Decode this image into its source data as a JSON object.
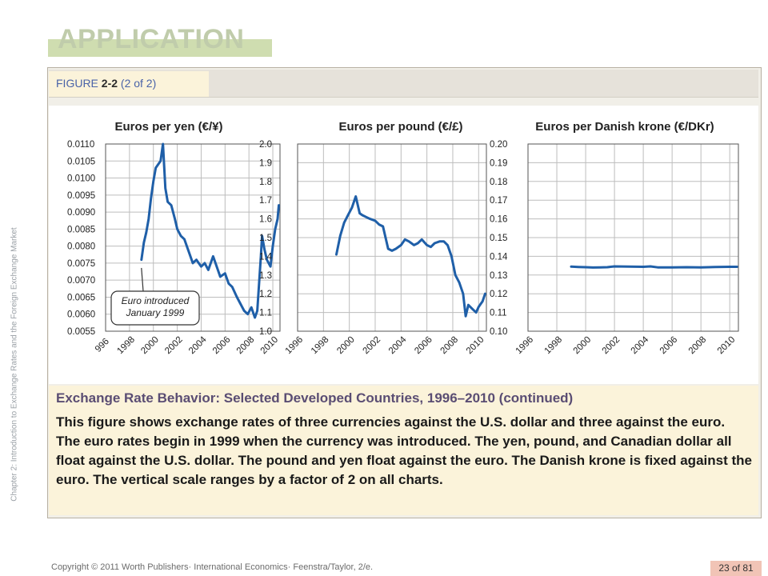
{
  "header": {
    "title": "APPLICATION",
    "figure_label_prefix": "FIGURE",
    "figure_label_number": "2-2",
    "figure_label_suffix": "(2 of 2)"
  },
  "side_text": "Chapter 2: Introduction to Exchange Rates and the Foreign Exchange Market",
  "caption": {
    "title": "Exchange Rate Behavior: Selected Developed Countries, 1996–2010 (continued)",
    "body": "This figure shows exchange rates of three currencies against the U.S. dollar and three against the euro. The euro rates begin in 1999 when the currency was introduced. The yen, pound, and Canadian dollar all float against the U.S. dollar. The pound and yen float against the euro. The Danish krone is fixed against the euro. The vertical scale ranges by a factor of 2 on all charts."
  },
  "footer": {
    "copyright": "Copyright © 2011 Worth Publishers· International Economics· Feenstra/Taylor, 2/e.",
    "page": "23 of 81"
  },
  "colors": {
    "line": "#1f5fa8",
    "grid": "#bdbdbd",
    "title_bar": "#cfddb0",
    "caption_bg": "#fbf3da"
  },
  "chart_data": [
    {
      "type": "line",
      "title": "Euros per yen (€/¥)",
      "x_ticks": [
        "1996",
        "1998",
        "2000",
        "2002",
        "2004",
        "2006",
        "2008",
        "2010"
      ],
      "x_tick_labels": [
        "996",
        "1998",
        "2000",
        "2002",
        "2004",
        "2006",
        "2008",
        "2010"
      ],
      "y_ticks": [
        "0.0055",
        "0.0060",
        "0.0065",
        "0.0070",
        "0.0075",
        "0.0080",
        "0.0085",
        "0.0090",
        "0.0095",
        "0.0100",
        "0.0105",
        "0.0110"
      ],
      "xlim": [
        1996,
        2010.6
      ],
      "ylim": [
        0.0055,
        0.011
      ],
      "grid": true,
      "annotation": {
        "lines": [
          "Euro introduced",
          "January 1999"
        ],
        "x": 1999.0,
        "y": 0.0075
      },
      "series": [
        {
          "x": [
            1999.0,
            1999.2,
            1999.4,
            1999.6,
            1999.8,
            2000.0,
            2000.2,
            2000.4,
            2000.6,
            2000.8,
            2001.0,
            2001.2,
            2001.5,
            2001.8,
            2002.0,
            2002.3,
            2002.6,
            2003.0,
            2003.3,
            2003.6,
            2004.0,
            2004.3,
            2004.6,
            2005.0,
            2005.3,
            2005.6,
            2006.0,
            2006.3,
            2006.6,
            2007.0,
            2007.3,
            2007.6,
            2007.9,
            2008.2,
            2008.5,
            2008.7,
            2009.0,
            2009.1,
            2009.3,
            2009.5,
            2009.8,
            2010.0,
            2010.2,
            2010.4,
            2010.5
          ],
          "y": [
            0.0076,
            0.0081,
            0.0084,
            0.0088,
            0.0094,
            0.0099,
            0.0103,
            0.0104,
            0.0105,
            0.011,
            0.0097,
            0.0093,
            0.0092,
            0.0088,
            0.0085,
            0.0083,
            0.0082,
            0.0078,
            0.0075,
            0.0076,
            0.0074,
            0.0075,
            0.0073,
            0.0077,
            0.0074,
            0.0071,
            0.0072,
            0.0069,
            0.0068,
            0.0065,
            0.0063,
            0.0061,
            0.006,
            0.0062,
            0.0059,
            0.0061,
            0.0077,
            0.0083,
            0.0079,
            0.0076,
            0.0074,
            0.008,
            0.0085,
            0.0088,
            0.0092
          ]
        }
      ]
    },
    {
      "type": "line",
      "title": "Euros per pound (€/£)",
      "x_ticks": [
        "1996",
        "1998",
        "2000",
        "2002",
        "2004",
        "2006",
        "2008",
        "2010"
      ],
      "x_tick_labels": [
        "1996",
        "1998",
        "2000",
        "2002",
        "2004",
        "2006",
        "2008",
        "2010"
      ],
      "y_ticks": [
        "1.0",
        "1.1",
        "1.2",
        "1.3",
        "1.4",
        "1.5",
        "1.6",
        "1.7",
        "1.8",
        "1.9",
        "2.0"
      ],
      "xlim": [
        1996,
        2010.6
      ],
      "ylim": [
        1.0,
        2.0
      ],
      "grid": true,
      "series": [
        {
          "x": [
            1999.0,
            1999.3,
            1999.6,
            1999.9,
            2000.2,
            2000.5,
            2000.8,
            2001.0,
            2001.3,
            2001.6,
            2002.0,
            2002.3,
            2002.6,
            2003.0,
            2003.3,
            2003.6,
            2004.0,
            2004.3,
            2004.6,
            2005.0,
            2005.3,
            2005.6,
            2006.0,
            2006.3,
            2006.6,
            2007.0,
            2007.3,
            2007.6,
            2007.9,
            2008.2,
            2008.5,
            2008.8,
            2009.0,
            2009.2,
            2009.5,
            2009.8,
            2010.0,
            2010.3,
            2010.5
          ],
          "y": [
            1.41,
            1.51,
            1.58,
            1.62,
            1.66,
            1.72,
            1.63,
            1.62,
            1.61,
            1.6,
            1.59,
            1.57,
            1.56,
            1.44,
            1.43,
            1.44,
            1.46,
            1.49,
            1.48,
            1.46,
            1.47,
            1.49,
            1.46,
            1.45,
            1.47,
            1.48,
            1.48,
            1.46,
            1.4,
            1.3,
            1.26,
            1.2,
            1.08,
            1.14,
            1.12,
            1.1,
            1.13,
            1.16,
            1.2
          ]
        }
      ]
    },
    {
      "type": "line",
      "title": "Euros per Danish krone (€/DKr)",
      "x_ticks": [
        "1996",
        "1998",
        "2000",
        "2002",
        "2004",
        "2006",
        "2008",
        "2010"
      ],
      "x_tick_labels": [
        "1996",
        "1998",
        "2000",
        "2002",
        "2004",
        "2006",
        "2008",
        "2010"
      ],
      "y_ticks": [
        "0.10",
        "0.11",
        "0.12",
        "0.13",
        "0.14",
        "0.15",
        "0.16",
        "0.17",
        "0.18",
        "0.19",
        "0.20"
      ],
      "xlim": [
        1996,
        2010.6
      ],
      "ylim": [
        0.1,
        0.2
      ],
      "grid": true,
      "series": [
        {
          "x": [
            1999.0,
            1999.5,
            2000.0,
            2000.5,
            2001.0,
            2001.5,
            2002.0,
            2003.0,
            2004.0,
            2004.5,
            2005.0,
            2006.0,
            2007.0,
            2008.0,
            2009.0,
            2010.0,
            2010.5
          ],
          "y": [
            0.1345,
            0.1343,
            0.1342,
            0.134,
            0.1341,
            0.1342,
            0.1346,
            0.1345,
            0.1344,
            0.1346,
            0.1341,
            0.1341,
            0.1342,
            0.1341,
            0.1343,
            0.1344,
            0.1344
          ]
        }
      ]
    }
  ]
}
